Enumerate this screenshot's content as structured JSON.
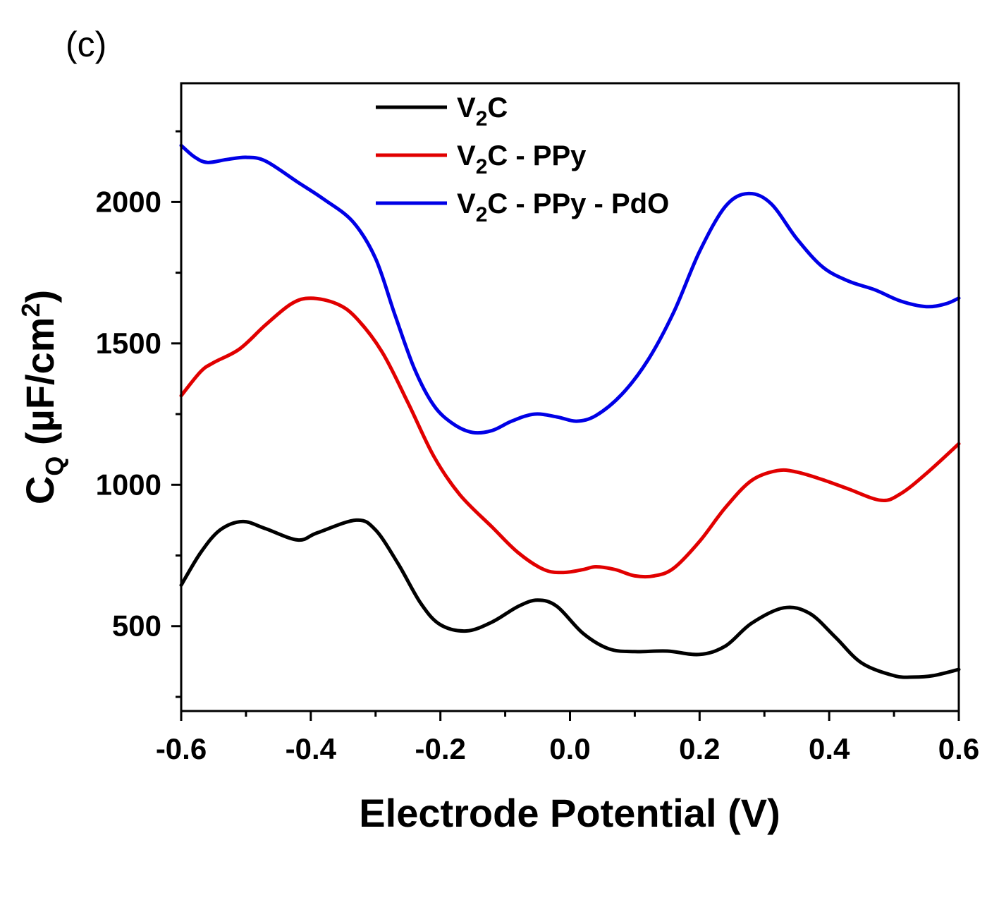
{
  "panel_label": "(c)",
  "chart_data": {
    "type": "line",
    "xlabel": "Electrode Potential (V)",
    "ylabel": {
      "main": "C",
      "subscript": "Q",
      "unit_prefix": " (µF/cm",
      "unit_superscript": "2",
      "unit_suffix": ")"
    },
    "xlim": [
      -0.6,
      0.6
    ],
    "ylim": [
      200,
      2420
    ],
    "xticks": [
      -0.6,
      -0.4,
      -0.2,
      0.0,
      0.2,
      0.4,
      0.6
    ],
    "xtick_labels": [
      "-0.6",
      "-0.4",
      "-0.2",
      "0.0",
      "0.2",
      "0.4",
      "0.6"
    ],
    "xticks_minor": [
      -0.5,
      -0.3,
      -0.1,
      0.1,
      0.3,
      0.5
    ],
    "yticks": [
      500,
      1000,
      1500,
      2000
    ],
    "ytick_labels": [
      "500",
      "1000",
      "1500",
      "2000"
    ],
    "yticks_minor": [
      250,
      750,
      1250,
      1750,
      2250
    ],
    "grid": false,
    "legend_position": "top-left",
    "series": [
      {
        "name": "V2C",
        "legend_parts": [
          "V",
          "2",
          "C"
        ],
        "color": "#000000",
        "points": [
          [
            -0.6,
            645
          ],
          [
            -0.57,
            760
          ],
          [
            -0.54,
            840
          ],
          [
            -0.505,
            870
          ],
          [
            -0.47,
            845
          ],
          [
            -0.42,
            805
          ],
          [
            -0.39,
            830
          ],
          [
            -0.33,
            875
          ],
          [
            -0.3,
            840
          ],
          [
            -0.265,
            720
          ],
          [
            -0.23,
            580
          ],
          [
            -0.2,
            505
          ],
          [
            -0.16,
            483
          ],
          [
            -0.12,
            515
          ],
          [
            -0.08,
            570
          ],
          [
            -0.05,
            592
          ],
          [
            -0.02,
            570
          ],
          [
            0.02,
            475
          ],
          [
            0.06,
            420
          ],
          [
            0.1,
            410
          ],
          [
            0.15,
            412
          ],
          [
            0.2,
            400
          ],
          [
            0.24,
            430
          ],
          [
            0.28,
            510
          ],
          [
            0.33,
            565
          ],
          [
            0.37,
            545
          ],
          [
            0.41,
            460
          ],
          [
            0.45,
            370
          ],
          [
            0.5,
            325
          ],
          [
            0.53,
            320
          ],
          [
            0.56,
            325
          ],
          [
            0.6,
            347
          ]
        ]
      },
      {
        "name": "V2C - PPy",
        "legend_parts": [
          "V",
          "2",
          "C - PPy"
        ],
        "color": "#e10000",
        "points": [
          [
            -0.6,
            1315
          ],
          [
            -0.57,
            1400
          ],
          [
            -0.55,
            1432
          ],
          [
            -0.51,
            1480
          ],
          [
            -0.47,
            1565
          ],
          [
            -0.43,
            1640
          ],
          [
            -0.4,
            1660
          ],
          [
            -0.36,
            1640
          ],
          [
            -0.33,
            1590
          ],
          [
            -0.29,
            1470
          ],
          [
            -0.25,
            1290
          ],
          [
            -0.21,
            1100
          ],
          [
            -0.17,
            965
          ],
          [
            -0.12,
            850
          ],
          [
            -0.08,
            760
          ],
          [
            -0.04,
            700
          ],
          [
            -0.01,
            690
          ],
          [
            0.02,
            700
          ],
          [
            0.04,
            710
          ],
          [
            0.07,
            700
          ],
          [
            0.1,
            678
          ],
          [
            0.13,
            678
          ],
          [
            0.16,
            705
          ],
          [
            0.2,
            800
          ],
          [
            0.24,
            920
          ],
          [
            0.28,
            1015
          ],
          [
            0.32,
            1050
          ],
          [
            0.35,
            1045
          ],
          [
            0.39,
            1018
          ],
          [
            0.43,
            985
          ],
          [
            0.48,
            945
          ],
          [
            0.51,
            968
          ],
          [
            0.55,
            1040
          ],
          [
            0.6,
            1145
          ]
        ]
      },
      {
        "name": "V2C - PPy - PdO",
        "legend_parts": [
          "V",
          "2",
          "C - PPy - PdO"
        ],
        "color": "#0000e6",
        "points": [
          [
            -0.6,
            2200
          ],
          [
            -0.58,
            2160
          ],
          [
            -0.56,
            2140
          ],
          [
            -0.53,
            2150
          ],
          [
            -0.5,
            2158
          ],
          [
            -0.47,
            2145
          ],
          [
            -0.42,
            2070
          ],
          [
            -0.38,
            2010
          ],
          [
            -0.335,
            1930
          ],
          [
            -0.3,
            1800
          ],
          [
            -0.27,
            1600
          ],
          [
            -0.24,
            1410
          ],
          [
            -0.21,
            1280
          ],
          [
            -0.18,
            1215
          ],
          [
            -0.15,
            1185
          ],
          [
            -0.12,
            1192
          ],
          [
            -0.09,
            1225
          ],
          [
            -0.055,
            1250
          ],
          [
            -0.02,
            1240
          ],
          [
            0.01,
            1225
          ],
          [
            0.04,
            1245
          ],
          [
            0.08,
            1320
          ],
          [
            0.12,
            1440
          ],
          [
            0.16,
            1610
          ],
          [
            0.2,
            1825
          ],
          [
            0.24,
            1985
          ],
          [
            0.275,
            2030
          ],
          [
            0.31,
            1995
          ],
          [
            0.35,
            1870
          ],
          [
            0.39,
            1770
          ],
          [
            0.43,
            1720
          ],
          [
            0.47,
            1690
          ],
          [
            0.51,
            1650
          ],
          [
            0.55,
            1630
          ],
          [
            0.58,
            1640
          ],
          [
            0.6,
            1660
          ]
        ]
      }
    ]
  }
}
